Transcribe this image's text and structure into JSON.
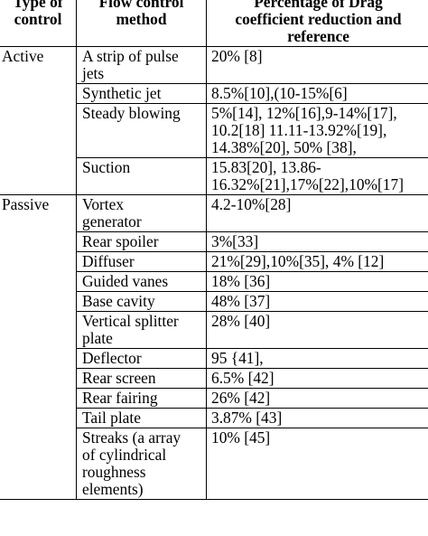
{
  "table": {
    "headers": [
      [
        "Type of",
        "control"
      ],
      [
        "Flow control",
        "method"
      ],
      [
        "Percentage of Drag",
        "coefficient reduction and",
        "reference"
      ]
    ],
    "groups": [
      {
        "type": "Active",
        "rows": [
          {
            "method": [
              "A strip of pulse",
              "jets"
            ],
            "value": [
              "20% [8]"
            ]
          },
          {
            "method": [
              "Synthetic jet"
            ],
            "value": [
              "8.5%[10],(10-15%[6]"
            ]
          },
          {
            "method": [
              "Steady blowing"
            ],
            "value": [
              "5%[14], 12%[16],9-14%[17],",
              "10.2[18] 11.11-13.92%[19],",
              "14.38%[20], 50% [38],"
            ]
          },
          {
            "method": [
              "Suction"
            ],
            "value": [
              "15.83[20], 13.86-",
              "16.32%[21],17%[22],10%[17]"
            ]
          }
        ]
      },
      {
        "type": "Passive",
        "rows": [
          {
            "method": [
              "Vortex",
              "generator"
            ],
            "value": [
              "4.2-10%[28]"
            ]
          },
          {
            "method": [
              "Rear spoiler"
            ],
            "value": [
              "3%[33]"
            ]
          },
          {
            "method": [
              "Diffuser"
            ],
            "value": [
              "21%[29],10%[35], 4% [12]"
            ]
          },
          {
            "method": [
              "Guided vanes"
            ],
            "value": [
              "18% [36]"
            ]
          },
          {
            "method": [
              "Base cavity"
            ],
            "value": [
              "48% [37]"
            ]
          },
          {
            "method": [
              "Vertical splitter",
              "plate"
            ],
            "value": [
              "28% [40]"
            ]
          },
          {
            "method": [
              "Deflector"
            ],
            "value": [
              "95 {41],"
            ]
          },
          {
            "method": [
              "Rear screen"
            ],
            "value": [
              "6.5% [42]"
            ]
          },
          {
            "method": [
              "Rear fairing"
            ],
            "value": [
              "26% [42]"
            ]
          },
          {
            "method": [
              "Tail plate"
            ],
            "value": [
              "3.87% [43]"
            ]
          },
          {
            "method": [
              "Streaks (a array",
              "of cylindrical",
              "roughness",
              "elements)"
            ],
            "value": [
              "10% [45]"
            ]
          }
        ]
      }
    ]
  }
}
